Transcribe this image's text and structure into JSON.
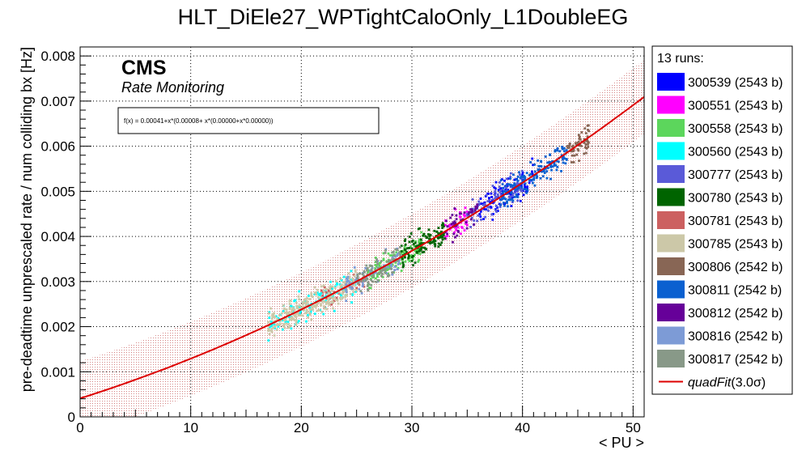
{
  "chart_data": {
    "type": "scatter",
    "title": "HLT_DiEle27_WPTightCaloOnly_L1DoubleEG",
    "xlabel": "< PU >",
    "ylabel": "pre-deadtime unprescaled rate / num colliding bx [Hz]",
    "xlim": [
      0,
      51
    ],
    "ylim": [
      0,
      0.0082
    ],
    "x_ticks": [
      "0",
      "10",
      "20",
      "30",
      "40",
      "50"
    ],
    "y_ticks": [
      "0",
      "0.001",
      "0.002",
      "0.003",
      "0.004",
      "0.005",
      "0.006",
      "0.007",
      "0.008"
    ],
    "grid": true,
    "cms_label": "CMS",
    "cms_sublabel": "Rate Monitoring",
    "fit_formula": "f(x) = 0.00041+x*(0.00008+ x*(0.00000+x*0.00000))",
    "fit": {
      "name": "quadFit",
      "band_sigma": 3.0,
      "coeffs": [
        0.00041,
        7.75e-05,
        1.05e-06
      ]
    },
    "legend_header": "13 runs:",
    "legend_fit_label": "quadFit",
    "legend_fit_suffix": "(3.0σ)",
    "legend_placement": "right",
    "fit_color": "#dd0000",
    "series": [
      {
        "name": "300539 (2543 b)",
        "color": "#0000ff",
        "pu_range": [
          36,
          41
        ],
        "count": 110,
        "spread": 0.00017
      },
      {
        "name": "300551 (2543 b)",
        "color": "#ff00ff",
        "pu_range": [
          33,
          35
        ],
        "count": 40,
        "spread": 0.00015
      },
      {
        "name": "300558 (2543 b)",
        "color": "#5cd65c",
        "pu_range": [
          26,
          31
        ],
        "count": 120,
        "spread": 0.00014
      },
      {
        "name": "300560 (2543 b)",
        "color": "#00ffff",
        "pu_range": [
          17,
          25
        ],
        "count": 130,
        "spread": 0.00016
      },
      {
        "name": "300777 (2543 b)",
        "color": "#5a5ad8",
        "pu_range": [
          35,
          40
        ],
        "count": 100,
        "spread": 0.00016
      },
      {
        "name": "300780 (2543 b)",
        "color": "#006400",
        "pu_range": [
          29,
          33
        ],
        "count": 120,
        "spread": 0.00016
      },
      {
        "name": "300781 (2543 b)",
        "color": "#cc6060",
        "pu_range": [
          21,
          26
        ],
        "count": 30,
        "spread": 0.00012
      },
      {
        "name": "300785 (2543 b)",
        "color": "#ccc8a8",
        "pu_range": [
          17,
          25
        ],
        "count": 260,
        "spread": 0.00014
      },
      {
        "name": "300806 (2542 b)",
        "color": "#886655",
        "pu_range": [
          44,
          46
        ],
        "count": 60,
        "spread": 0.00018
      },
      {
        "name": "300811 (2542 b)",
        "color": "#0a60d0",
        "pu_range": [
          38,
          44
        ],
        "count": 160,
        "spread": 0.00016
      },
      {
        "name": "300812 (2542 b)",
        "color": "#660099",
        "pu_range": [
          33,
          36
        ],
        "count": 50,
        "spread": 0.00013
      },
      {
        "name": "300816 (2542 b)",
        "color": "#7d9bd6",
        "pu_range": [
          24,
          29
        ],
        "count": 80,
        "spread": 0.00013
      },
      {
        "name": "300817 (2542 b)",
        "color": "#889988",
        "pu_range": [
          25,
          29
        ],
        "count": 90,
        "spread": 0.00014
      }
    ]
  }
}
